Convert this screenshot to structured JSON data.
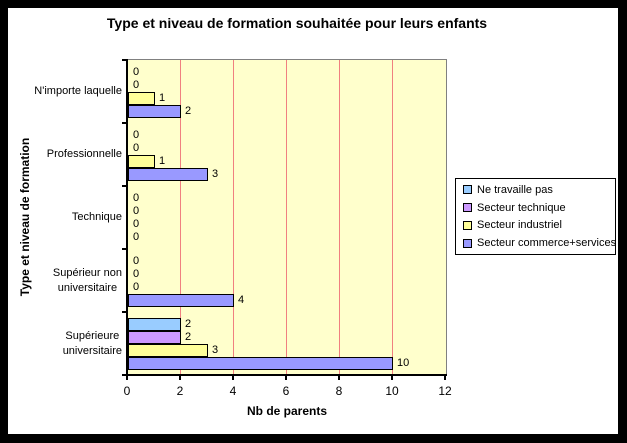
{
  "window": {
    "frame_color": "#000000",
    "background": "#FFFFFF"
  },
  "chart_data": {
    "type": "bar",
    "orientation": "horizontal",
    "title": "Type et niveau de formation souhaitée pour leurs enfants",
    "xlabel": "Nb de parents",
    "ylabel": "Type et niveau de formation",
    "xlim": [
      0,
      12
    ],
    "xticks": [
      0,
      2,
      4,
      6,
      8,
      10,
      12
    ],
    "grid": true,
    "gridline_color": "#F08080",
    "plot_bg": "#FFFFCC",
    "data_labels": true,
    "legend_position": "right",
    "categories": [
      "N'importe laquelle",
      "Professionnelle",
      "Technique",
      "Supérieur non\nuniversitaire",
      "Supérieure\nuniversitaire"
    ],
    "series": [
      {
        "name": "Ne travaille pas",
        "color": "#99CCFF",
        "values": [
          0,
          0,
          0,
          0,
          2
        ]
      },
      {
        "name": "Secteur technique",
        "color": "#CC99FF",
        "values": [
          0,
          0,
          0,
          0,
          2
        ]
      },
      {
        "name": "Secteur industriel",
        "color": "#FFFF99",
        "values": [
          1,
          1,
          0,
          0,
          3
        ]
      },
      {
        "name": "Secteur commerce+services",
        "color": "#9999FF",
        "values": [
          2,
          3,
          0,
          4,
          10
        ]
      }
    ]
  }
}
